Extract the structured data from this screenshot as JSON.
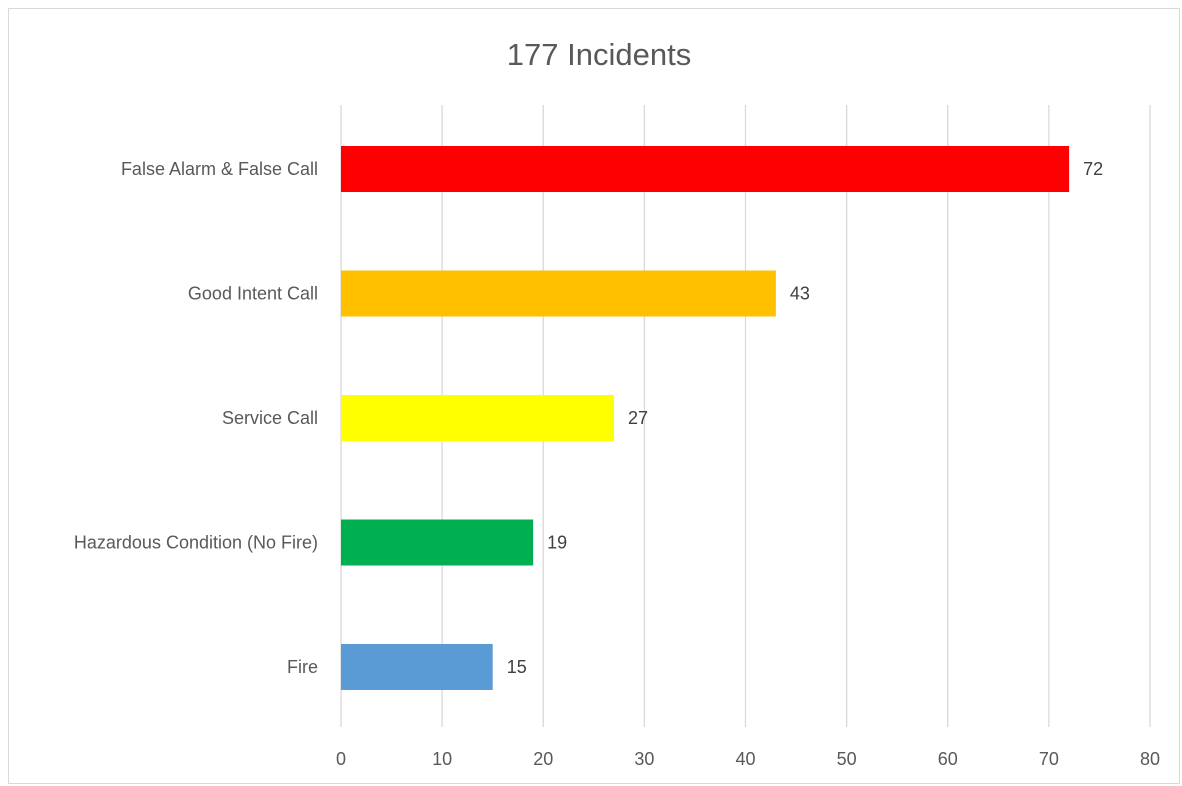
{
  "chart_data": {
    "type": "bar",
    "orientation": "horizontal",
    "title": "177 Incidents",
    "xlabel": "",
    "ylabel": "",
    "categories": [
      "False Alarm & False Call",
      "Good Intent Call",
      "Service Call",
      "Hazardous Condition (No Fire)",
      "Fire"
    ],
    "values": [
      72,
      43,
      27,
      19,
      15
    ],
    "colors": [
      "#ff0000",
      "#ffc000",
      "#ffff00",
      "#00b050",
      "#5b9bd5"
    ],
    "xlim": [
      0,
      80
    ],
    "xticks": [
      0,
      10,
      20,
      30,
      40,
      50,
      60,
      70,
      80
    ],
    "grid": "vertical",
    "legend": "none",
    "data_labels": true
  }
}
